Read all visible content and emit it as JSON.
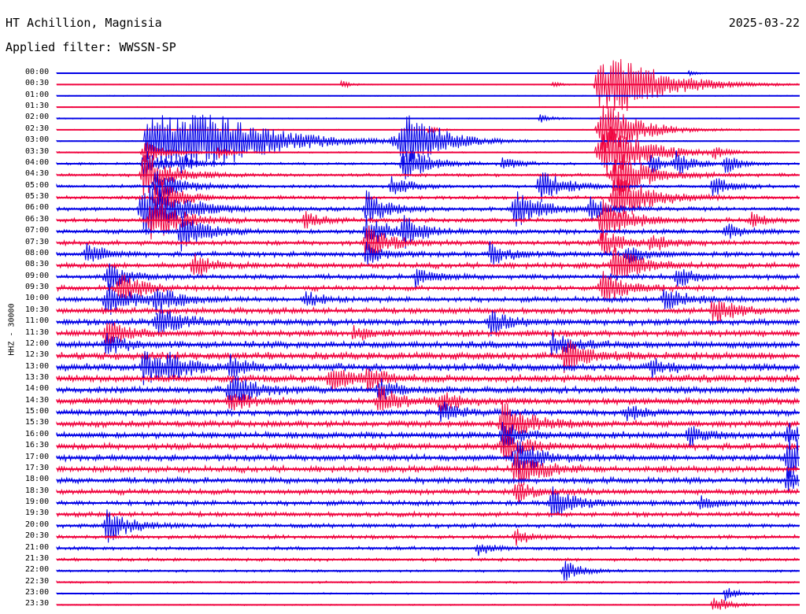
{
  "header": {
    "station": "HT Achillion, Magnisia",
    "date": "2025-03-22",
    "filter": "Applied filter: WWSSN-SP"
  },
  "axis": {
    "ylabel": "HHZ - 30000"
  },
  "colors": {
    "blue": "#0000e6",
    "red": "#f0003c",
    "background": "#ffffff",
    "text": "#000000"
  },
  "chart_data": {
    "type": "line",
    "title": "HT Achillion, Magnisia",
    "subtitle": "Applied filter: WWSSN-SP",
    "ylabel": "HHZ - 30000",
    "x_span_minutes": 30,
    "row_colors_cycle": [
      "blue",
      "red"
    ],
    "tick_labels": [
      "00:00",
      "00:30",
      "01:00",
      "01:30",
      "02:00",
      "02:30",
      "03:00",
      "03:30",
      "04:00",
      "04:30",
      "05:00",
      "05:30",
      "06:00",
      "06:30",
      "07:00",
      "07:30",
      "08:00",
      "08:30",
      "09:00",
      "09:30",
      "10:00",
      "10:30",
      "11:00",
      "11:30",
      "12:00",
      "12:30",
      "13:00",
      "13:30",
      "14:00",
      "14:30",
      "15:00",
      "15:30",
      "16:00",
      "16:30",
      "17:00",
      "17:30",
      "18:00",
      "18:30",
      "19:00",
      "19:30",
      "20:00",
      "20:30",
      "21:00",
      "21:30",
      "22:00",
      "22:30",
      "23:00",
      "23:30"
    ],
    "noise_level": [
      0.4,
      0.4,
      0.5,
      0.4,
      0.6,
      0.5,
      0.6,
      0.7,
      1.2,
      1.6,
      1.6,
      1.8,
      2.0,
      2.2,
      2.4,
      2.4,
      2.6,
      2.8,
      2.6,
      2.6,
      2.8,
      3.0,
      3.2,
      3.4,
      3.6,
      3.8,
      3.8,
      3.8,
      3.6,
      3.4,
      3.2,
      3.2,
      3.4,
      3.4,
      3.2,
      3.2,
      3.0,
      2.8,
      2.6,
      2.4,
      2.2,
      2.0,
      1.8,
      1.6,
      1.2,
      1.0,
      0.8,
      0.7
    ],
    "events": [
      {
        "row": 0,
        "minute": 25.5,
        "amp": 3
      },
      {
        "row": 1,
        "minute": 11.5,
        "amp": 5
      },
      {
        "row": 1,
        "minute": 20.0,
        "amp": 4
      },
      {
        "row": 1,
        "minute": 22.0,
        "amp": 60
      },
      {
        "row": 4,
        "minute": 19.5,
        "amp": 6
      },
      {
        "row": 5,
        "minute": 15.0,
        "amp": 5
      },
      {
        "row": 5,
        "minute": 22.0,
        "amp": 40
      },
      {
        "row": 6,
        "minute": 4.0,
        "amp": 90
      },
      {
        "row": 6,
        "minute": 13.5,
        "amp": 6
      },
      {
        "row": 6,
        "minute": 14.0,
        "amp": 40
      },
      {
        "row": 6,
        "minute": 15.0,
        "amp": 6
      },
      {
        "row": 7,
        "minute": 3.5,
        "amp": 18
      },
      {
        "row": 7,
        "minute": 6.5,
        "amp": 8
      },
      {
        "row": 7,
        "minute": 22.0,
        "amp": 45
      },
      {
        "row": 7,
        "minute": 26.5,
        "amp": 8
      },
      {
        "row": 8,
        "minute": 3.5,
        "amp": 18
      },
      {
        "row": 8,
        "minute": 5.0,
        "amp": 12
      },
      {
        "row": 8,
        "minute": 14.0,
        "amp": 25
      },
      {
        "row": 8,
        "minute": 18.0,
        "amp": 10
      },
      {
        "row": 8,
        "minute": 24.0,
        "amp": 12
      },
      {
        "row": 8,
        "minute": 25.0,
        "amp": 14
      },
      {
        "row": 8,
        "minute": 27.0,
        "amp": 12
      },
      {
        "row": 9,
        "minute": 3.5,
        "amp": 30
      },
      {
        "row": 9,
        "minute": 22.5,
        "amp": 35
      },
      {
        "row": 10,
        "minute": 4.0,
        "amp": 24
      },
      {
        "row": 10,
        "minute": 13.5,
        "amp": 15
      },
      {
        "row": 10,
        "minute": 19.5,
        "amp": 24
      },
      {
        "row": 10,
        "minute": 26.5,
        "amp": 14
      },
      {
        "row": 11,
        "minute": 4.0,
        "amp": 25
      },
      {
        "row": 11,
        "minute": 22.5,
        "amp": 36
      },
      {
        "row": 12,
        "minute": 3.5,
        "amp": 40
      },
      {
        "row": 12,
        "minute": 12.5,
        "amp": 22
      },
      {
        "row": 12,
        "minute": 18.5,
        "amp": 25
      },
      {
        "row": 12,
        "minute": 21.5,
        "amp": 15
      },
      {
        "row": 13,
        "minute": 3.8,
        "amp": 30
      },
      {
        "row": 13,
        "minute": 10.0,
        "amp": 12
      },
      {
        "row": 13,
        "minute": 22.0,
        "amp": 28
      },
      {
        "row": 13,
        "minute": 28.0,
        "amp": 10
      },
      {
        "row": 14,
        "minute": 5.0,
        "amp": 25
      },
      {
        "row": 14,
        "minute": 12.5,
        "amp": 22
      },
      {
        "row": 14,
        "minute": 14.0,
        "amp": 18
      },
      {
        "row": 14,
        "minute": 27.0,
        "amp": 12
      },
      {
        "row": 15,
        "minute": 12.5,
        "amp": 24
      },
      {
        "row": 15,
        "minute": 22.0,
        "amp": 20
      },
      {
        "row": 15,
        "minute": 24.0,
        "amp": 12
      },
      {
        "row": 16,
        "minute": 1.2,
        "amp": 14
      },
      {
        "row": 16,
        "minute": 12.5,
        "amp": 14
      },
      {
        "row": 16,
        "minute": 17.5,
        "amp": 16
      },
      {
        "row": 16,
        "minute": 23.0,
        "amp": 14
      },
      {
        "row": 17,
        "minute": 5.5,
        "amp": 16
      },
      {
        "row": 17,
        "minute": 22.5,
        "amp": 26
      },
      {
        "row": 18,
        "minute": 2.0,
        "amp": 18
      },
      {
        "row": 18,
        "minute": 14.5,
        "amp": 14
      },
      {
        "row": 18,
        "minute": 25.0,
        "amp": 14
      },
      {
        "row": 19,
        "minute": 2.5,
        "amp": 22
      },
      {
        "row": 19,
        "minute": 22.0,
        "amp": 22
      },
      {
        "row": 20,
        "minute": 2.0,
        "amp": 24
      },
      {
        "row": 20,
        "minute": 4.0,
        "amp": 18
      },
      {
        "row": 20,
        "minute": 10.0,
        "amp": 12
      },
      {
        "row": 20,
        "minute": 24.5,
        "amp": 18
      },
      {
        "row": 21,
        "minute": 26.5,
        "amp": 20
      },
      {
        "row": 22,
        "minute": 4.0,
        "amp": 22
      },
      {
        "row": 22,
        "minute": 17.5,
        "amp": 16
      },
      {
        "row": 23,
        "minute": 2.0,
        "amp": 18
      },
      {
        "row": 23,
        "minute": 12.0,
        "amp": 10
      },
      {
        "row": 24,
        "minute": 2.0,
        "amp": 14
      },
      {
        "row": 24,
        "minute": 20.0,
        "amp": 16
      },
      {
        "row": 25,
        "minute": 20.5,
        "amp": 22
      },
      {
        "row": 26,
        "minute": 3.5,
        "amp": 22
      },
      {
        "row": 26,
        "minute": 4.5,
        "amp": 16
      },
      {
        "row": 26,
        "minute": 7.0,
        "amp": 14
      },
      {
        "row": 26,
        "minute": 24.0,
        "amp": 12
      },
      {
        "row": 27,
        "minute": 11.0,
        "amp": 18
      },
      {
        "row": 27,
        "minute": 12.5,
        "amp": 14
      },
      {
        "row": 28,
        "minute": 7.0,
        "amp": 24
      },
      {
        "row": 28,
        "minute": 13.0,
        "amp": 14
      },
      {
        "row": 29,
        "minute": 7.0,
        "amp": 16
      },
      {
        "row": 29,
        "minute": 13.0,
        "amp": 20
      },
      {
        "row": 29,
        "minute": 15.5,
        "amp": 14
      },
      {
        "row": 30,
        "minute": 15.5,
        "amp": 14
      },
      {
        "row": 30,
        "minute": 23.0,
        "amp": 12
      },
      {
        "row": 31,
        "minute": 18.0,
        "amp": 28
      },
      {
        "row": 32,
        "minute": 18.0,
        "amp": 18
      },
      {
        "row": 32,
        "minute": 25.5,
        "amp": 14
      },
      {
        "row": 32,
        "minute": 29.5,
        "amp": 16
      },
      {
        "row": 33,
        "minute": 18.0,
        "amp": 20
      },
      {
        "row": 34,
        "minute": 18.5,
        "amp": 24
      },
      {
        "row": 34,
        "minute": 29.5,
        "amp": 30
      },
      {
        "row": 35,
        "minute": 18.5,
        "amp": 26
      },
      {
        "row": 36,
        "minute": 29.5,
        "amp": 18
      },
      {
        "row": 37,
        "minute": 18.5,
        "amp": 16
      },
      {
        "row": 38,
        "minute": 20.0,
        "amp": 22
      },
      {
        "row": 38,
        "minute": 26.0,
        "amp": 10
      },
      {
        "row": 40,
        "minute": 2.0,
        "amp": 22
      },
      {
        "row": 41,
        "minute": 18.5,
        "amp": 10
      },
      {
        "row": 42,
        "minute": 17.0,
        "amp": 10
      },
      {
        "row": 44,
        "minute": 20.5,
        "amp": 14
      },
      {
        "row": 46,
        "minute": 27.0,
        "amp": 10
      },
      {
        "row": 47,
        "minute": 26.5,
        "amp": 12
      }
    ]
  }
}
